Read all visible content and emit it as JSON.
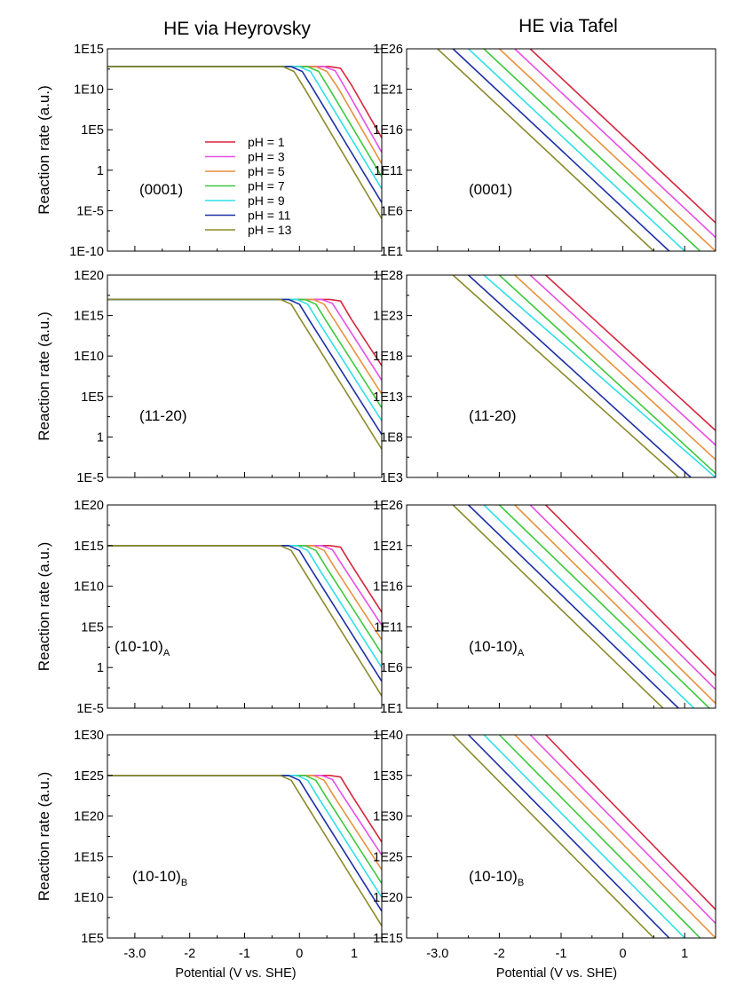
{
  "figure": {
    "column_titles": [
      "HE via Heyrovsky",
      "HE via Tafel"
    ]
  },
  "colors": {
    "pH = 1": "#d7263d",
    "pH = 3": "#e84ee6",
    "pH = 5": "#e8913e",
    "pH = 7": "#3cc83c",
    "pH = 9": "#2fe0e8",
    "pH = 11": "#1c2fa6",
    "pH = 13": "#8c8a2a"
  },
  "chart_data": [
    {
      "type": "line",
      "log_y": true,
      "title": "HE via Heyrovsky",
      "annotation": "(0001)",
      "annotation_subscript": "",
      "xlabel": "",
      "ylabel": "Reaction rate (a.u.)",
      "xlim": [
        -3.5,
        1.5
      ],
      "xticks": [
        -3,
        -2,
        -1,
        0,
        1
      ],
      "xtick_labels": [],
      "ylim_exp": [
        -10,
        15
      ],
      "yticks": [
        "1E15",
        "1E10",
        "1E5",
        "1",
        "1E-5",
        "1E-10"
      ],
      "legend": {
        "position": "center-left"
      },
      "series": [
        {
          "name": "pH = 1",
          "x": [
            -3.5,
            0.55,
            0.75,
            0.95,
            1.5
          ],
          "y_exp": [
            12.8,
            12.8,
            12.6,
            10.5,
            4.0
          ]
        },
        {
          "name": "pH = 3",
          "x": [
            -3.5,
            0.45,
            0.65,
            0.85,
            1.5
          ],
          "y_exp": [
            12.8,
            12.8,
            12.3,
            10.0,
            2.2
          ]
        },
        {
          "name": "pH = 5",
          "x": [
            -3.5,
            0.3,
            0.5,
            0.7,
            1.5
          ],
          "y_exp": [
            12.8,
            12.8,
            12.2,
            10.2,
            0.8
          ]
        },
        {
          "name": "pH = 7",
          "x": [
            -3.5,
            0.15,
            0.35,
            0.55,
            1.5
          ],
          "y_exp": [
            12.8,
            12.8,
            12.2,
            10.0,
            -0.8
          ]
        },
        {
          "name": "pH = 9",
          "x": [
            -3.5,
            0.0,
            0.2,
            0.4,
            1.5
          ],
          "y_exp": [
            12.8,
            12.8,
            12.2,
            10.0,
            -2.3
          ]
        },
        {
          "name": "pH = 11",
          "x": [
            -3.5,
            -0.15,
            0.05,
            0.25,
            1.5
          ],
          "y_exp": [
            12.8,
            12.8,
            12.2,
            10.0,
            -4.0
          ]
        },
        {
          "name": "pH = 13",
          "x": [
            -3.5,
            -0.3,
            -0.1,
            0.1,
            1.5
          ],
          "y_exp": [
            12.8,
            12.8,
            12.2,
            10.0,
            -6.0
          ]
        }
      ]
    },
    {
      "type": "line",
      "log_y": true,
      "title": "HE via Tafel",
      "annotation": "(0001)",
      "annotation_subscript": "",
      "xlabel": "",
      "ylabel": "",
      "xlim": [
        -3.5,
        1.5
      ],
      "xticks": [
        -3,
        -2,
        -1,
        0,
        1
      ],
      "xtick_labels": [],
      "ylim_exp": [
        1,
        26
      ],
      "yticks": [
        "1E26",
        "1E21",
        "1E16",
        "1E11",
        "1E6",
        "1E1"
      ],
      "series": [
        {
          "name": "pH = 1",
          "x": [
            -1.5,
            1.5
          ],
          "y_exp": [
            26,
            4.5
          ]
        },
        {
          "name": "pH = 3",
          "x": [
            -1.75,
            1.5
          ],
          "y_exp": [
            26,
            2.7
          ]
        },
        {
          "name": "pH = 5",
          "x": [
            -2.0,
            1.5
          ],
          "y_exp": [
            26,
            1.0
          ]
        },
        {
          "name": "pH = 7",
          "x": [
            -2.25,
            1.25
          ],
          "y_exp": [
            26,
            1.0
          ]
        },
        {
          "name": "pH = 9",
          "x": [
            -2.5,
            1.0
          ],
          "y_exp": [
            26,
            1.0
          ]
        },
        {
          "name": "pH = 11",
          "x": [
            -2.75,
            0.75
          ],
          "y_exp": [
            26,
            1.0
          ]
        },
        {
          "name": "pH = 13",
          "x": [
            -3.0,
            0.5
          ],
          "y_exp": [
            26,
            1.0
          ]
        }
      ]
    },
    {
      "type": "line",
      "log_y": true,
      "title": "",
      "annotation": "(11-20)",
      "annotation_subscript": "",
      "xlabel": "",
      "ylabel": "Reaction rate (a.u.)",
      "xlim": [
        -3.5,
        1.5
      ],
      "xticks": [
        -3,
        -2,
        -1,
        0,
        1
      ],
      "xtick_labels": [],
      "ylim_exp": [
        -5,
        20
      ],
      "yticks": [
        "1E20",
        "1E15",
        "1E10",
        "1E5",
        "1",
        "1E-5"
      ],
      "series": [
        {
          "name": "pH = 1",
          "x": [
            -3.5,
            0.55,
            0.75,
            0.95,
            1.5
          ],
          "y_exp": [
            17.0,
            17.0,
            16.8,
            14.5,
            8.8
          ]
        },
        {
          "name": "pH = 3",
          "x": [
            -3.5,
            0.4,
            0.6,
            0.8,
            1.5
          ],
          "y_exp": [
            17.0,
            17.0,
            16.5,
            14.4,
            7.0
          ]
        },
        {
          "name": "pH = 5",
          "x": [
            -3.5,
            0.25,
            0.45,
            0.65,
            1.5
          ],
          "y_exp": [
            17.0,
            17.0,
            16.4,
            14.3,
            5.3
          ]
        },
        {
          "name": "pH = 7",
          "x": [
            -3.5,
            0.1,
            0.3,
            0.5,
            1.5
          ],
          "y_exp": [
            17.0,
            17.0,
            16.4,
            14.2,
            3.6
          ]
        },
        {
          "name": "pH = 9",
          "x": [
            -3.5,
            -0.05,
            0.15,
            0.35,
            1.5
          ],
          "y_exp": [
            17.0,
            17.0,
            16.4,
            14.2,
            2.0
          ]
        },
        {
          "name": "pH = 11",
          "x": [
            -3.5,
            -0.2,
            0.0,
            0.2,
            1.5
          ],
          "y_exp": [
            17.0,
            17.0,
            16.4,
            14.2,
            0.3
          ]
        },
        {
          "name": "pH = 13",
          "x": [
            -3.5,
            -0.35,
            -0.15,
            0.05,
            1.5
          ],
          "y_exp": [
            17.0,
            17.0,
            16.4,
            14.2,
            -1.5
          ]
        }
      ]
    },
    {
      "type": "line",
      "log_y": true,
      "title": "",
      "annotation": "(11-20)",
      "annotation_subscript": "",
      "xlabel": "",
      "ylabel": "",
      "xlim": [
        -3.5,
        1.5
      ],
      "xticks": [
        -3,
        -2,
        -1,
        0,
        1
      ],
      "xtick_labels": [],
      "ylim_exp": [
        3,
        28
      ],
      "yticks": [
        "1E28",
        "1E23",
        "1E18",
        "1E13",
        "1E8",
        "1E3"
      ],
      "series": [
        {
          "name": "pH = 1",
          "x": [
            -1.25,
            1.5
          ],
          "y_exp": [
            28,
            8.8
          ]
        },
        {
          "name": "pH = 3",
          "x": [
            -1.5,
            1.5
          ],
          "y_exp": [
            28,
            7.0
          ]
        },
        {
          "name": "pH = 5",
          "x": [
            -1.75,
            1.5
          ],
          "y_exp": [
            28,
            5.2
          ]
        },
        {
          "name": "pH = 7",
          "x": [
            -2.0,
            1.5
          ],
          "y_exp": [
            28,
            3.5
          ]
        },
        {
          "name": "pH = 9",
          "x": [
            -2.25,
            1.5
          ],
          "y_exp": [
            28,
            3.0
          ]
        },
        {
          "name": "pH = 11",
          "x": [
            -2.5,
            1.1
          ],
          "y_exp": [
            28,
            3.0
          ]
        },
        {
          "name": "pH = 13",
          "x": [
            -2.75,
            0.9
          ],
          "y_exp": [
            28,
            3.0
          ]
        }
      ]
    },
    {
      "type": "line",
      "log_y": true,
      "title": "",
      "annotation": "(10-10)",
      "annotation_subscript": "A",
      "xlabel": "",
      "ylabel": "Reaction rate (a.u.)",
      "xlim": [
        -3.5,
        1.5
      ],
      "xticks": [
        -3,
        -2,
        -1,
        0,
        1
      ],
      "xtick_labels": [],
      "ylim_exp": [
        -5,
        20
      ],
      "yticks": [
        "1E20",
        "1E15",
        "1E10",
        "1E5",
        "1",
        "1E-5"
      ],
      "series": [
        {
          "name": "pH = 1",
          "x": [
            -3.5,
            0.55,
            0.75,
            0.95,
            1.5
          ],
          "y_exp": [
            15.0,
            15.0,
            14.8,
            12.6,
            6.8
          ]
        },
        {
          "name": "pH = 3",
          "x": [
            -3.5,
            0.4,
            0.6,
            0.8,
            1.5
          ],
          "y_exp": [
            15.0,
            15.0,
            14.5,
            12.4,
            5.2
          ]
        },
        {
          "name": "pH = 5",
          "x": [
            -3.5,
            0.25,
            0.45,
            0.65,
            1.5
          ],
          "y_exp": [
            15.0,
            15.0,
            14.4,
            12.2,
            3.4
          ]
        },
        {
          "name": "pH = 7",
          "x": [
            -3.5,
            0.1,
            0.3,
            0.5,
            1.5
          ],
          "y_exp": [
            15.0,
            15.0,
            14.4,
            12.2,
            1.7
          ]
        },
        {
          "name": "pH = 9",
          "x": [
            -3.5,
            -0.05,
            0.15,
            0.35,
            1.5
          ],
          "y_exp": [
            15.0,
            15.0,
            14.4,
            12.2,
            0.0
          ]
        },
        {
          "name": "pH = 11",
          "x": [
            -3.5,
            -0.2,
            0.0,
            0.2,
            1.5
          ],
          "y_exp": [
            15.0,
            15.0,
            14.4,
            12.2,
            -1.7
          ]
        },
        {
          "name": "pH = 13",
          "x": [
            -3.5,
            -0.35,
            -0.15,
            0.05,
            1.5
          ],
          "y_exp": [
            15.0,
            15.0,
            14.4,
            12.2,
            -3.5
          ]
        }
      ]
    },
    {
      "type": "line",
      "log_y": true,
      "title": "",
      "annotation": "(10-10)",
      "annotation_subscript": "A",
      "xlabel": "",
      "ylabel": "",
      "xlim": [
        -3.5,
        1.5
      ],
      "xticks": [
        -3,
        -2,
        -1,
        0,
        1
      ],
      "xtick_labels": [],
      "ylim_exp": [
        1,
        26
      ],
      "yticks": [
        "1E26",
        "1E21",
        "1E16",
        "1E11",
        "1E6",
        "1E1"
      ],
      "series": [
        {
          "name": "pH = 1",
          "x": [
            -1.25,
            1.5
          ],
          "y_exp": [
            26,
            5.0
          ]
        },
        {
          "name": "pH = 3",
          "x": [
            -1.5,
            1.5
          ],
          "y_exp": [
            26,
            3.3
          ]
        },
        {
          "name": "pH = 5",
          "x": [
            -1.75,
            1.5
          ],
          "y_exp": [
            26,
            1.6
          ]
        },
        {
          "name": "pH = 7",
          "x": [
            -2.0,
            1.4
          ],
          "y_exp": [
            26,
            1.0
          ]
        },
        {
          "name": "pH = 9",
          "x": [
            -2.25,
            1.15
          ],
          "y_exp": [
            26,
            1.0
          ]
        },
        {
          "name": "pH = 11",
          "x": [
            -2.5,
            0.9
          ],
          "y_exp": [
            26,
            1.0
          ]
        },
        {
          "name": "pH = 13",
          "x": [
            -2.75,
            0.65
          ],
          "y_exp": [
            26,
            1.0
          ]
        }
      ]
    },
    {
      "type": "line",
      "log_y": true,
      "title": "",
      "annotation": "(10-10)",
      "annotation_subscript": "B",
      "xlabel": "Potential (V vs. SHE)",
      "ylabel": "Reaction rate (a.u.)",
      "xlim": [
        -3.5,
        1.5
      ],
      "xticks": [
        -3,
        -2,
        -1,
        0,
        1
      ],
      "xtick_labels": [
        "-3.0",
        "-2",
        "-1",
        "0",
        "1"
      ],
      "ylim_exp": [
        5,
        30
      ],
      "yticks": [
        "1E30",
        "1E25",
        "1E20",
        "1E15",
        "1E10",
        "1E5"
      ],
      "series": [
        {
          "name": "pH = 1",
          "x": [
            -3.5,
            0.55,
            0.75,
            0.95,
            1.5
          ],
          "y_exp": [
            25.0,
            25.0,
            24.8,
            22.6,
            16.8
          ]
        },
        {
          "name": "pH = 3",
          "x": [
            -3.5,
            0.4,
            0.6,
            0.8,
            1.5
          ],
          "y_exp": [
            25.0,
            25.0,
            24.5,
            22.4,
            15.2
          ]
        },
        {
          "name": "pH = 5",
          "x": [
            -3.5,
            0.25,
            0.45,
            0.65,
            1.5
          ],
          "y_exp": [
            25.0,
            25.0,
            24.4,
            22.2,
            13.4
          ]
        },
        {
          "name": "pH = 7",
          "x": [
            -3.5,
            0.1,
            0.3,
            0.5,
            1.5
          ],
          "y_exp": [
            25.0,
            25.0,
            24.4,
            22.2,
            11.7
          ]
        },
        {
          "name": "pH = 9",
          "x": [
            -3.5,
            -0.05,
            0.15,
            0.35,
            1.5
          ],
          "y_exp": [
            25.0,
            25.0,
            24.4,
            22.2,
            10.0
          ]
        },
        {
          "name": "pH = 11",
          "x": [
            -3.5,
            -0.2,
            0.0,
            0.2,
            1.5
          ],
          "y_exp": [
            25.0,
            25.0,
            24.4,
            22.2,
            8.3
          ]
        },
        {
          "name": "pH = 13",
          "x": [
            -3.5,
            -0.35,
            -0.15,
            0.05,
            1.5
          ],
          "y_exp": [
            25.0,
            25.0,
            24.4,
            22.2,
            6.5
          ]
        }
      ]
    },
    {
      "type": "line",
      "log_y": true,
      "title": "",
      "annotation": "(10-10)",
      "annotation_subscript": "B",
      "xlabel": "Potential (V vs. SHE)",
      "ylabel": "",
      "xlim": [
        -3.5,
        1.5
      ],
      "xticks": [
        -3,
        -2,
        -1,
        0,
        1
      ],
      "xtick_labels": [
        "-3.0",
        "-2",
        "-1",
        "0",
        "1"
      ],
      "ylim_exp": [
        15,
        40
      ],
      "yticks": [
        "1E40",
        "1E35",
        "1E30",
        "1E25",
        "1E20",
        "1E15"
      ],
      "series": [
        {
          "name": "pH = 1",
          "x": [
            -1.25,
            1.5
          ],
          "y_exp": [
            40,
            18.5
          ]
        },
        {
          "name": "pH = 3",
          "x": [
            -1.5,
            1.5
          ],
          "y_exp": [
            40,
            16.8
          ]
        },
        {
          "name": "pH = 5",
          "x": [
            -1.75,
            1.5
          ],
          "y_exp": [
            40,
            15.0
          ]
        },
        {
          "name": "pH = 7",
          "x": [
            -2.0,
            1.25
          ],
          "y_exp": [
            40,
            15.0
          ]
        },
        {
          "name": "pH = 9",
          "x": [
            -2.25,
            1.0
          ],
          "y_exp": [
            40,
            15.0
          ]
        },
        {
          "name": "pH = 11",
          "x": [
            -2.5,
            0.75
          ],
          "y_exp": [
            40,
            15.0
          ]
        },
        {
          "name": "pH = 13",
          "x": [
            -2.75,
            0.5
          ],
          "y_exp": [
            40,
            15.0
          ]
        }
      ]
    }
  ]
}
